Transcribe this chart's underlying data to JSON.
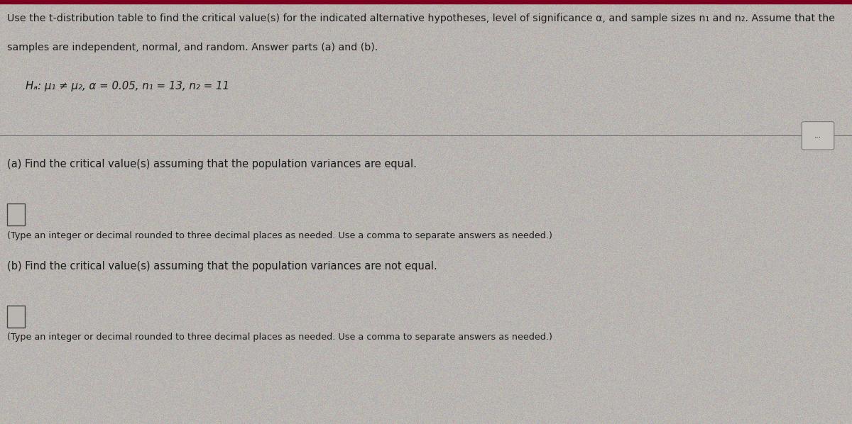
{
  "bg_color": "#b8b4b0",
  "top_border_color": "#8b0000",
  "text_color": "#1a1a1a",
  "line1": "Use the t-distribution table to find the critical value(s) for the indicated alternative hypotheses, level of significance α, and sample sizes n₁ and n₂. Assume that the",
  "line2": "samples are independent, normal, and random. Answer parts (a) and (b).",
  "hypothesis_line": "Hₐ: μ₁ ≠ μ₂, α = 0.05, n₁ = 13, n₂ = 11",
  "divider_button": "...",
  "part_a_label": "(a) Find the critical value(s) assuming that the population variances are equal.",
  "part_a_instruction": "(Type an integer or decimal rounded to three decimal places as needed. Use a comma to separate answers as needed.)",
  "part_b_label": "(b) Find the critical value(s) assuming that the population variances are not equal.",
  "part_b_instruction": "(Type an integer or decimal rounded to three decimal places as needed. Use a comma to separate answers as needed.)",
  "font_size_main": 10.2,
  "font_size_hypothesis": 10.8,
  "font_size_part_label": 10.5,
  "font_size_instruction": 9.2
}
